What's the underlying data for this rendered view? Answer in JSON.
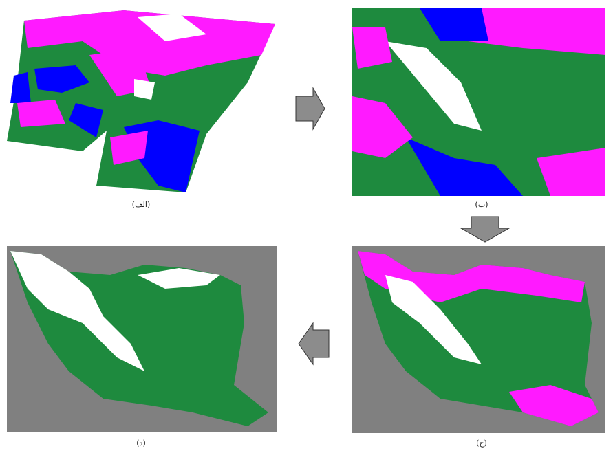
{
  "panels": [
    {
      "caption": "(الف)"
    },
    {
      "caption": "(ب)"
    },
    {
      "caption": "(ج)"
    },
    {
      "caption": "(د)"
    }
  ]
}
